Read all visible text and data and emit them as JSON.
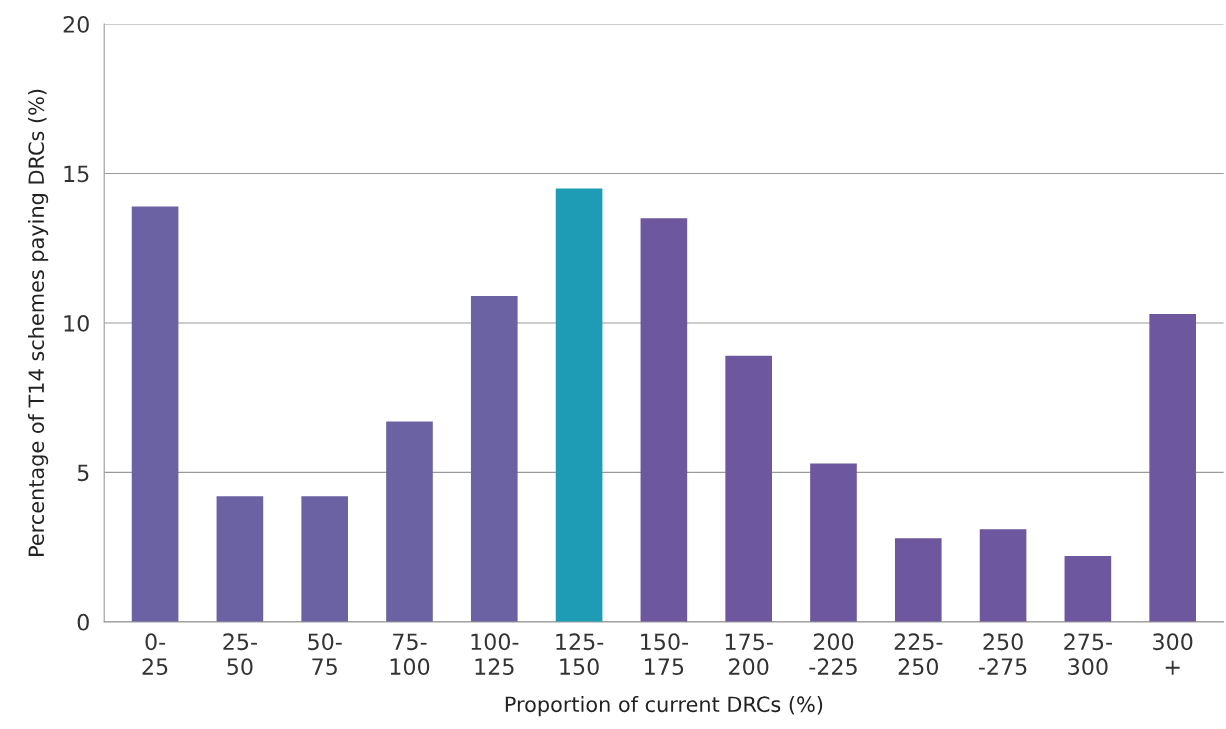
{
  "chart_data": {
    "type": "bar",
    "xlabel": "Proportion of current DRCs (%)",
    "ylabel": "Percentage of T14 schemes paying DRCs (%)",
    "categories": [
      "0-\n25",
      "25-\n50",
      "50-\n75",
      "75-\n100",
      "100-\n125",
      "125-\n150",
      "150-\n175",
      "175-\n200",
      "200\n-225",
      "225-\n250",
      "250\n-275",
      "275-\n300",
      "300\n+"
    ],
    "values": [
      13.9,
      4.2,
      4.2,
      6.7,
      10.9,
      14.5,
      13.5,
      8.9,
      5.3,
      2.8,
      3.1,
      2.2,
      10.3
    ],
    "colors": [
      "#6b62a4",
      "#6b62a4",
      "#6b62a4",
      "#6b62a4",
      "#6b62a4",
      "#1e9bb5",
      "#6d579f",
      "#6d579f",
      "#6d579f",
      "#6d579f",
      "#6d579f",
      "#6d579f",
      "#6d579f"
    ],
    "ylim": [
      0,
      20
    ],
    "yticks": [
      0,
      5,
      10,
      15,
      20
    ],
    "grid": "y"
  }
}
